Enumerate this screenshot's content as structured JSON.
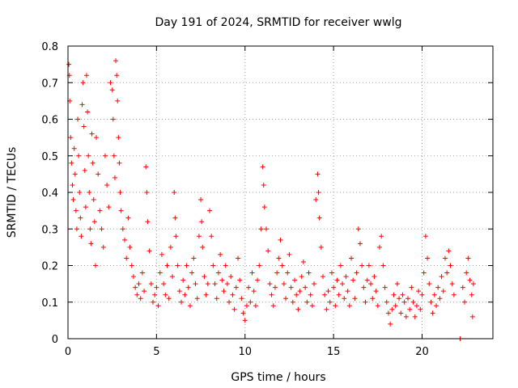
{
  "chart_data": {
    "type": "scatter",
    "title": "Day 191 of 2024, SRMTID for receiver wwlg",
    "xlabel": "GPS time / hours",
    "ylabel": "SRMTID / TECUs",
    "xlim": [
      0,
      24
    ],
    "ylim": [
      0,
      0.8
    ],
    "xticks": [
      0,
      5,
      10,
      15,
      20
    ],
    "xtick_labels": [
      "0",
      "5",
      "10",
      "15",
      "20"
    ],
    "yticks": [
      0,
      0.1,
      0.2,
      0.3,
      0.4,
      0.5,
      0.6,
      0.7,
      0.8
    ],
    "ytick_labels": [
      "0",
      "0.1",
      "0.2",
      "0.3",
      "0.4",
      "0.5",
      "0.6",
      "0.7",
      "0.8"
    ],
    "grid": true,
    "marker": "+",
    "series_color": "#ff0000",
    "series": [
      {
        "name": "SRMTID",
        "points": [
          [
            0.05,
            0.75
          ],
          [
            0.08,
            0.72
          ],
          [
            0.1,
            0.65
          ],
          [
            0.15,
            0.55
          ],
          [
            0.2,
            0.48
          ],
          [
            0.25,
            0.42
          ],
          [
            0.3,
            0.38
          ],
          [
            0.35,
            0.52
          ],
          [
            0.4,
            0.45
          ],
          [
            0.45,
            0.35
          ],
          [
            0.5,
            0.3
          ],
          [
            0.55,
            0.6
          ],
          [
            0.6,
            0.5
          ],
          [
            0.65,
            0.4
          ],
          [
            0.7,
            0.33
          ],
          [
            0.75,
            0.28
          ],
          [
            0.8,
            0.64
          ],
          [
            0.85,
            0.7
          ],
          [
            0.9,
            0.58
          ],
          [
            0.95,
            0.46
          ],
          [
            1.0,
            0.36
          ],
          [
            1.05,
            0.72
          ],
          [
            1.1,
            0.62
          ],
          [
            1.15,
            0.5
          ],
          [
            1.2,
            0.4
          ],
          [
            1.25,
            0.3
          ],
          [
            1.3,
            0.26
          ],
          [
            1.35,
            0.56
          ],
          [
            1.4,
            0.48
          ],
          [
            1.45,
            0.38
          ],
          [
            1.5,
            0.32
          ],
          [
            1.55,
            0.2
          ],
          [
            1.6,
            0.55
          ],
          [
            1.7,
            0.45
          ],
          [
            1.8,
            0.35
          ],
          [
            1.9,
            0.3
          ],
          [
            2.0,
            0.25
          ],
          [
            2.1,
            0.5
          ],
          [
            2.2,
            0.42
          ],
          [
            2.3,
            0.36
          ],
          [
            2.4,
            0.7
          ],
          [
            2.5,
            0.68
          ],
          [
            2.55,
            0.6
          ],
          [
            2.6,
            0.5
          ],
          [
            2.65,
            0.44
          ],
          [
            2.7,
            0.76
          ],
          [
            2.75,
            0.72
          ],
          [
            2.8,
            0.65
          ],
          [
            2.85,
            0.55
          ],
          [
            2.9,
            0.48
          ],
          [
            2.95,
            0.4
          ],
          [
            3.0,
            0.35
          ],
          [
            3.1,
            0.3
          ],
          [
            3.2,
            0.27
          ],
          [
            3.3,
            0.22
          ],
          [
            3.4,
            0.33
          ],
          [
            3.5,
            0.25
          ],
          [
            3.6,
            0.2
          ],
          [
            3.7,
            0.17
          ],
          [
            3.8,
            0.14
          ],
          [
            3.9,
            0.12
          ],
          [
            4.0,
            0.15
          ],
          [
            4.1,
            0.11
          ],
          [
            4.2,
            0.18
          ],
          [
            4.3,
            0.13
          ],
          [
            4.4,
            0.47
          ],
          [
            4.45,
            0.4
          ],
          [
            4.5,
            0.32
          ],
          [
            4.6,
            0.24
          ],
          [
            4.7,
            0.15
          ],
          [
            4.8,
            0.1
          ],
          [
            4.9,
            0.12
          ],
          [
            5.0,
            0.14
          ],
          [
            5.1,
            0.09
          ],
          [
            5.2,
            0.18
          ],
          [
            5.3,
            0.23
          ],
          [
            5.4,
            0.15
          ],
          [
            5.5,
            0.12
          ],
          [
            5.6,
            0.2
          ],
          [
            5.7,
            0.11
          ],
          [
            5.8,
            0.25
          ],
          [
            5.9,
            0.17
          ],
          [
            6.0,
            0.4
          ],
          [
            6.05,
            0.33
          ],
          [
            6.1,
            0.28
          ],
          [
            6.2,
            0.2
          ],
          [
            6.3,
            0.13
          ],
          [
            6.4,
            0.1
          ],
          [
            6.5,
            0.16
          ],
          [
            6.6,
            0.12
          ],
          [
            6.7,
            0.2
          ],
          [
            6.8,
            0.14
          ],
          [
            6.9,
            0.09
          ],
          [
            7.0,
            0.18
          ],
          [
            7.1,
            0.22
          ],
          [
            7.2,
            0.15
          ],
          [
            7.3,
            0.11
          ],
          [
            7.4,
            0.28
          ],
          [
            7.5,
            0.38
          ],
          [
            7.55,
            0.32
          ],
          [
            7.6,
            0.25
          ],
          [
            7.7,
            0.17
          ],
          [
            7.8,
            0.12
          ],
          [
            7.9,
            0.15
          ],
          [
            8.0,
            0.35
          ],
          [
            8.1,
            0.28
          ],
          [
            8.2,
            0.2
          ],
          [
            8.3,
            0.15
          ],
          [
            8.4,
            0.11
          ],
          [
            8.5,
            0.18
          ],
          [
            8.6,
            0.23
          ],
          [
            8.7,
            0.16
          ],
          [
            8.8,
            0.13
          ],
          [
            8.9,
            0.2
          ],
          [
            9.0,
            0.15
          ],
          [
            9.1,
            0.1
          ],
          [
            9.2,
            0.17
          ],
          [
            9.3,
            0.12
          ],
          [
            9.4,
            0.08
          ],
          [
            9.5,
            0.14
          ],
          [
            9.6,
            0.22
          ],
          [
            9.7,
            0.16
          ],
          [
            9.8,
            0.11
          ],
          [
            9.9,
            0.07
          ],
          [
            10.0,
            0.05
          ],
          [
            10.1,
            0.09
          ],
          [
            10.2,
            0.14
          ],
          [
            10.3,
            0.1
          ],
          [
            10.4,
            0.18
          ],
          [
            10.5,
            0.13
          ],
          [
            10.6,
            0.09
          ],
          [
            10.7,
            0.16
          ],
          [
            10.8,
            0.2
          ],
          [
            10.9,
            0.3
          ],
          [
            11.0,
            0.47
          ],
          [
            11.05,
            0.42
          ],
          [
            11.1,
            0.36
          ],
          [
            11.2,
            0.3
          ],
          [
            11.3,
            0.24
          ],
          [
            11.4,
            0.15
          ],
          [
            11.5,
            0.12
          ],
          [
            11.6,
            0.09
          ],
          [
            11.7,
            0.14
          ],
          [
            11.8,
            0.18
          ],
          [
            11.9,
            0.22
          ],
          [
            12.0,
            0.27
          ],
          [
            12.1,
            0.2
          ],
          [
            12.2,
            0.15
          ],
          [
            12.3,
            0.11
          ],
          [
            12.4,
            0.18
          ],
          [
            12.5,
            0.23
          ],
          [
            12.6,
            0.14
          ],
          [
            12.7,
            0.1
          ],
          [
            12.8,
            0.16
          ],
          [
            12.9,
            0.12
          ],
          [
            13.0,
            0.08
          ],
          [
            13.1,
            0.13
          ],
          [
            13.2,
            0.17
          ],
          [
            13.3,
            0.21
          ],
          [
            13.4,
            0.14
          ],
          [
            13.5,
            0.1
          ],
          [
            13.6,
            0.18
          ],
          [
            13.7,
            0.12
          ],
          [
            13.8,
            0.09
          ],
          [
            13.9,
            0.15
          ],
          [
            14.0,
            0.38
          ],
          [
            14.1,
            0.45
          ],
          [
            14.15,
            0.4
          ],
          [
            14.2,
            0.33
          ],
          [
            14.3,
            0.25
          ],
          [
            14.4,
            0.17
          ],
          [
            14.5,
            0.12
          ],
          [
            14.6,
            0.08
          ],
          [
            14.7,
            0.13
          ],
          [
            14.8,
            0.1
          ],
          [
            14.9,
            0.18
          ],
          [
            15.0,
            0.14
          ],
          [
            15.1,
            0.09
          ],
          [
            15.2,
            0.16
          ],
          [
            15.3,
            0.12
          ],
          [
            15.4,
            0.2
          ],
          [
            15.5,
            0.15
          ],
          [
            15.6,
            0.11
          ],
          [
            15.7,
            0.17
          ],
          [
            15.8,
            0.13
          ],
          [
            15.9,
            0.09
          ],
          [
            16.0,
            0.22
          ],
          [
            16.1,
            0.16
          ],
          [
            16.2,
            0.11
          ],
          [
            16.3,
            0.18
          ],
          [
            16.4,
            0.3
          ],
          [
            16.5,
            0.26
          ],
          [
            16.6,
            0.2
          ],
          [
            16.7,
            0.14
          ],
          [
            16.8,
            0.1
          ],
          [
            16.9,
            0.16
          ],
          [
            17.0,
            0.2
          ],
          [
            17.1,
            0.15
          ],
          [
            17.2,
            0.11
          ],
          [
            17.3,
            0.17
          ],
          [
            17.4,
            0.13
          ],
          [
            17.5,
            0.09
          ],
          [
            17.6,
            0.25
          ],
          [
            17.7,
            0.28
          ],
          [
            17.8,
            0.2
          ],
          [
            17.9,
            0.14
          ],
          [
            18.0,
            0.1
          ],
          [
            18.1,
            0.07
          ],
          [
            18.2,
            0.04
          ],
          [
            18.3,
            0.08
          ],
          [
            18.4,
            0.12
          ],
          [
            18.5,
            0.09
          ],
          [
            18.6,
            0.15
          ],
          [
            18.7,
            0.11
          ],
          [
            18.8,
            0.07
          ],
          [
            18.9,
            0.12
          ],
          [
            19.0,
            0.1
          ],
          [
            19.1,
            0.06
          ],
          [
            19.2,
            0.11
          ],
          [
            19.3,
            0.08
          ],
          [
            19.4,
            0.14
          ],
          [
            19.5,
            0.1
          ],
          [
            19.6,
            0.06
          ],
          [
            19.7,
            0.09
          ],
          [
            19.8,
            0.13
          ],
          [
            19.9,
            0.08
          ],
          [
            20.0,
            0.12
          ],
          [
            20.1,
            0.18
          ],
          [
            20.2,
            0.28
          ],
          [
            20.3,
            0.22
          ],
          [
            20.4,
            0.15
          ],
          [
            20.5,
            0.1
          ],
          [
            20.6,
            0.07
          ],
          [
            20.7,
            0.12
          ],
          [
            20.8,
            0.09
          ],
          [
            20.9,
            0.14
          ],
          [
            21.0,
            0.11
          ],
          [
            21.1,
            0.17
          ],
          [
            21.2,
            0.13
          ],
          [
            21.3,
            0.22
          ],
          [
            21.4,
            0.18
          ],
          [
            21.5,
            0.24
          ],
          [
            21.6,
            0.2
          ],
          [
            21.7,
            0.15
          ],
          [
            21.8,
            0.12
          ],
          [
            22.15,
            0.0
          ],
          [
            22.3,
            0.14
          ],
          [
            22.4,
            0.1
          ],
          [
            22.5,
            0.18
          ],
          [
            22.6,
            0.22
          ],
          [
            22.7,
            0.16
          ],
          [
            22.8,
            0.12
          ],
          [
            22.85,
            0.06
          ],
          [
            22.9,
            0.15
          ]
        ]
      }
    ]
  }
}
